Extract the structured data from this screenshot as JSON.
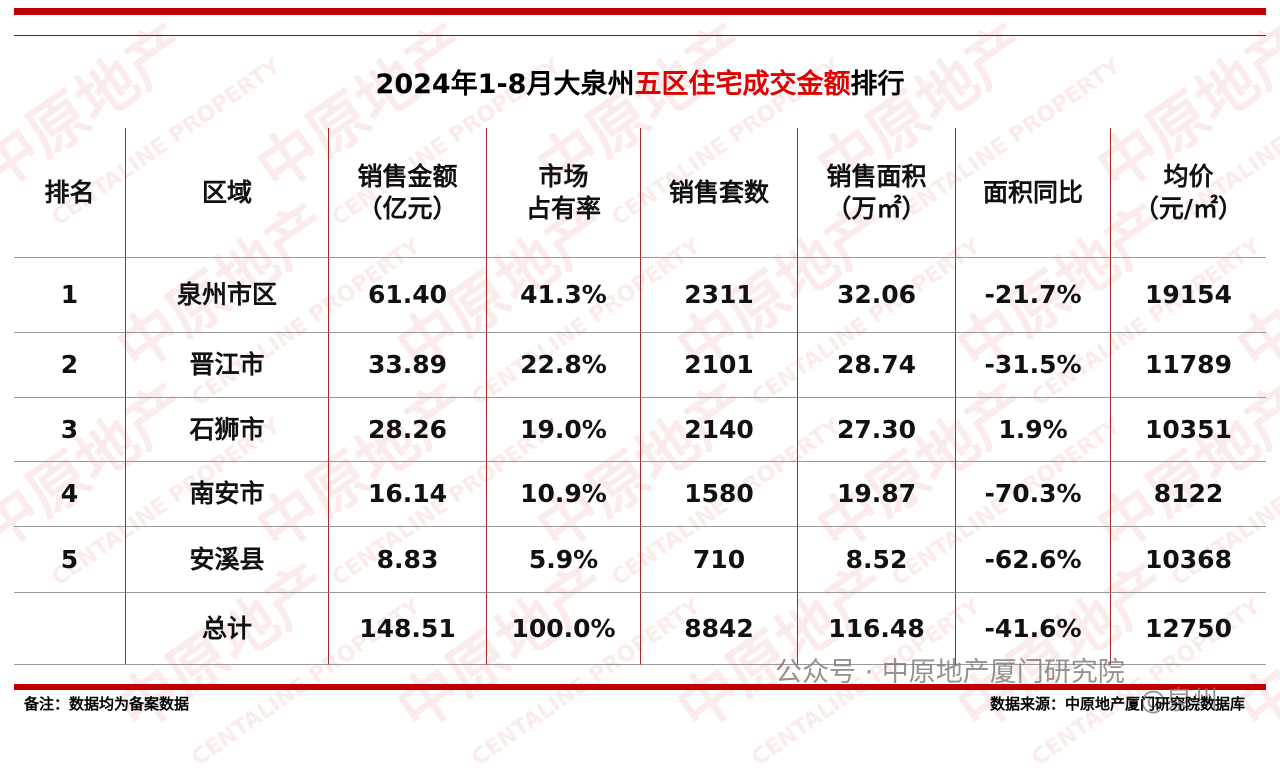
{
  "header": {
    "title": [
      "2024年1-8月大泉州",
      "五区住宅成交金额",
      "排行"
    ]
  },
  "table": {
    "columns": [
      [
        "排名"
      ],
      [
        "区域"
      ],
      [
        "销售金额",
        "（亿元）"
      ],
      [
        "市场",
        "占有率"
      ],
      [
        "销售套数"
      ],
      [
        "销售面积",
        "（万㎡）"
      ],
      [
        "面积同比"
      ],
      [
        "均价",
        "（元/㎡）"
      ]
    ],
    "rows": [
      [
        "1",
        "泉州市区",
        "61.40",
        "41.3%",
        "2311",
        "32.06",
        "-21.7%",
        "19154"
      ],
      [
        "2",
        "晋江市",
        "33.89",
        "22.8%",
        "2101",
        "28.74",
        "-31.5%",
        "11789"
      ],
      [
        "3",
        "石狮市",
        "28.26",
        "19.0%",
        "2140",
        "27.30",
        "1.9%",
        "10351"
      ],
      [
        "4",
        "南安市",
        "16.14",
        "10.9%",
        "1580",
        "19.87",
        "-70.3%",
        "8122"
      ],
      [
        "5",
        "安溪县",
        "8.83",
        "5.9%",
        "710",
        "8.52",
        "-62.6%",
        "10368"
      ],
      [
        null,
        "总计",
        "148.51",
        "100.0%",
        "8842",
        "116.48",
        "-41.6%",
        "12750"
      ]
    ]
  },
  "watermark": [
    "中原地产",
    "CENTALINE PROPERTY"
  ],
  "overlay": {
    "wechat": "公众号 · 中原地产厦门研究院",
    "handle": "@泉州"
  },
  "footer": {
    "note": "备注：数据均为备案数据",
    "source": "数据来源：中原地产厦门研究院数据库"
  }
}
